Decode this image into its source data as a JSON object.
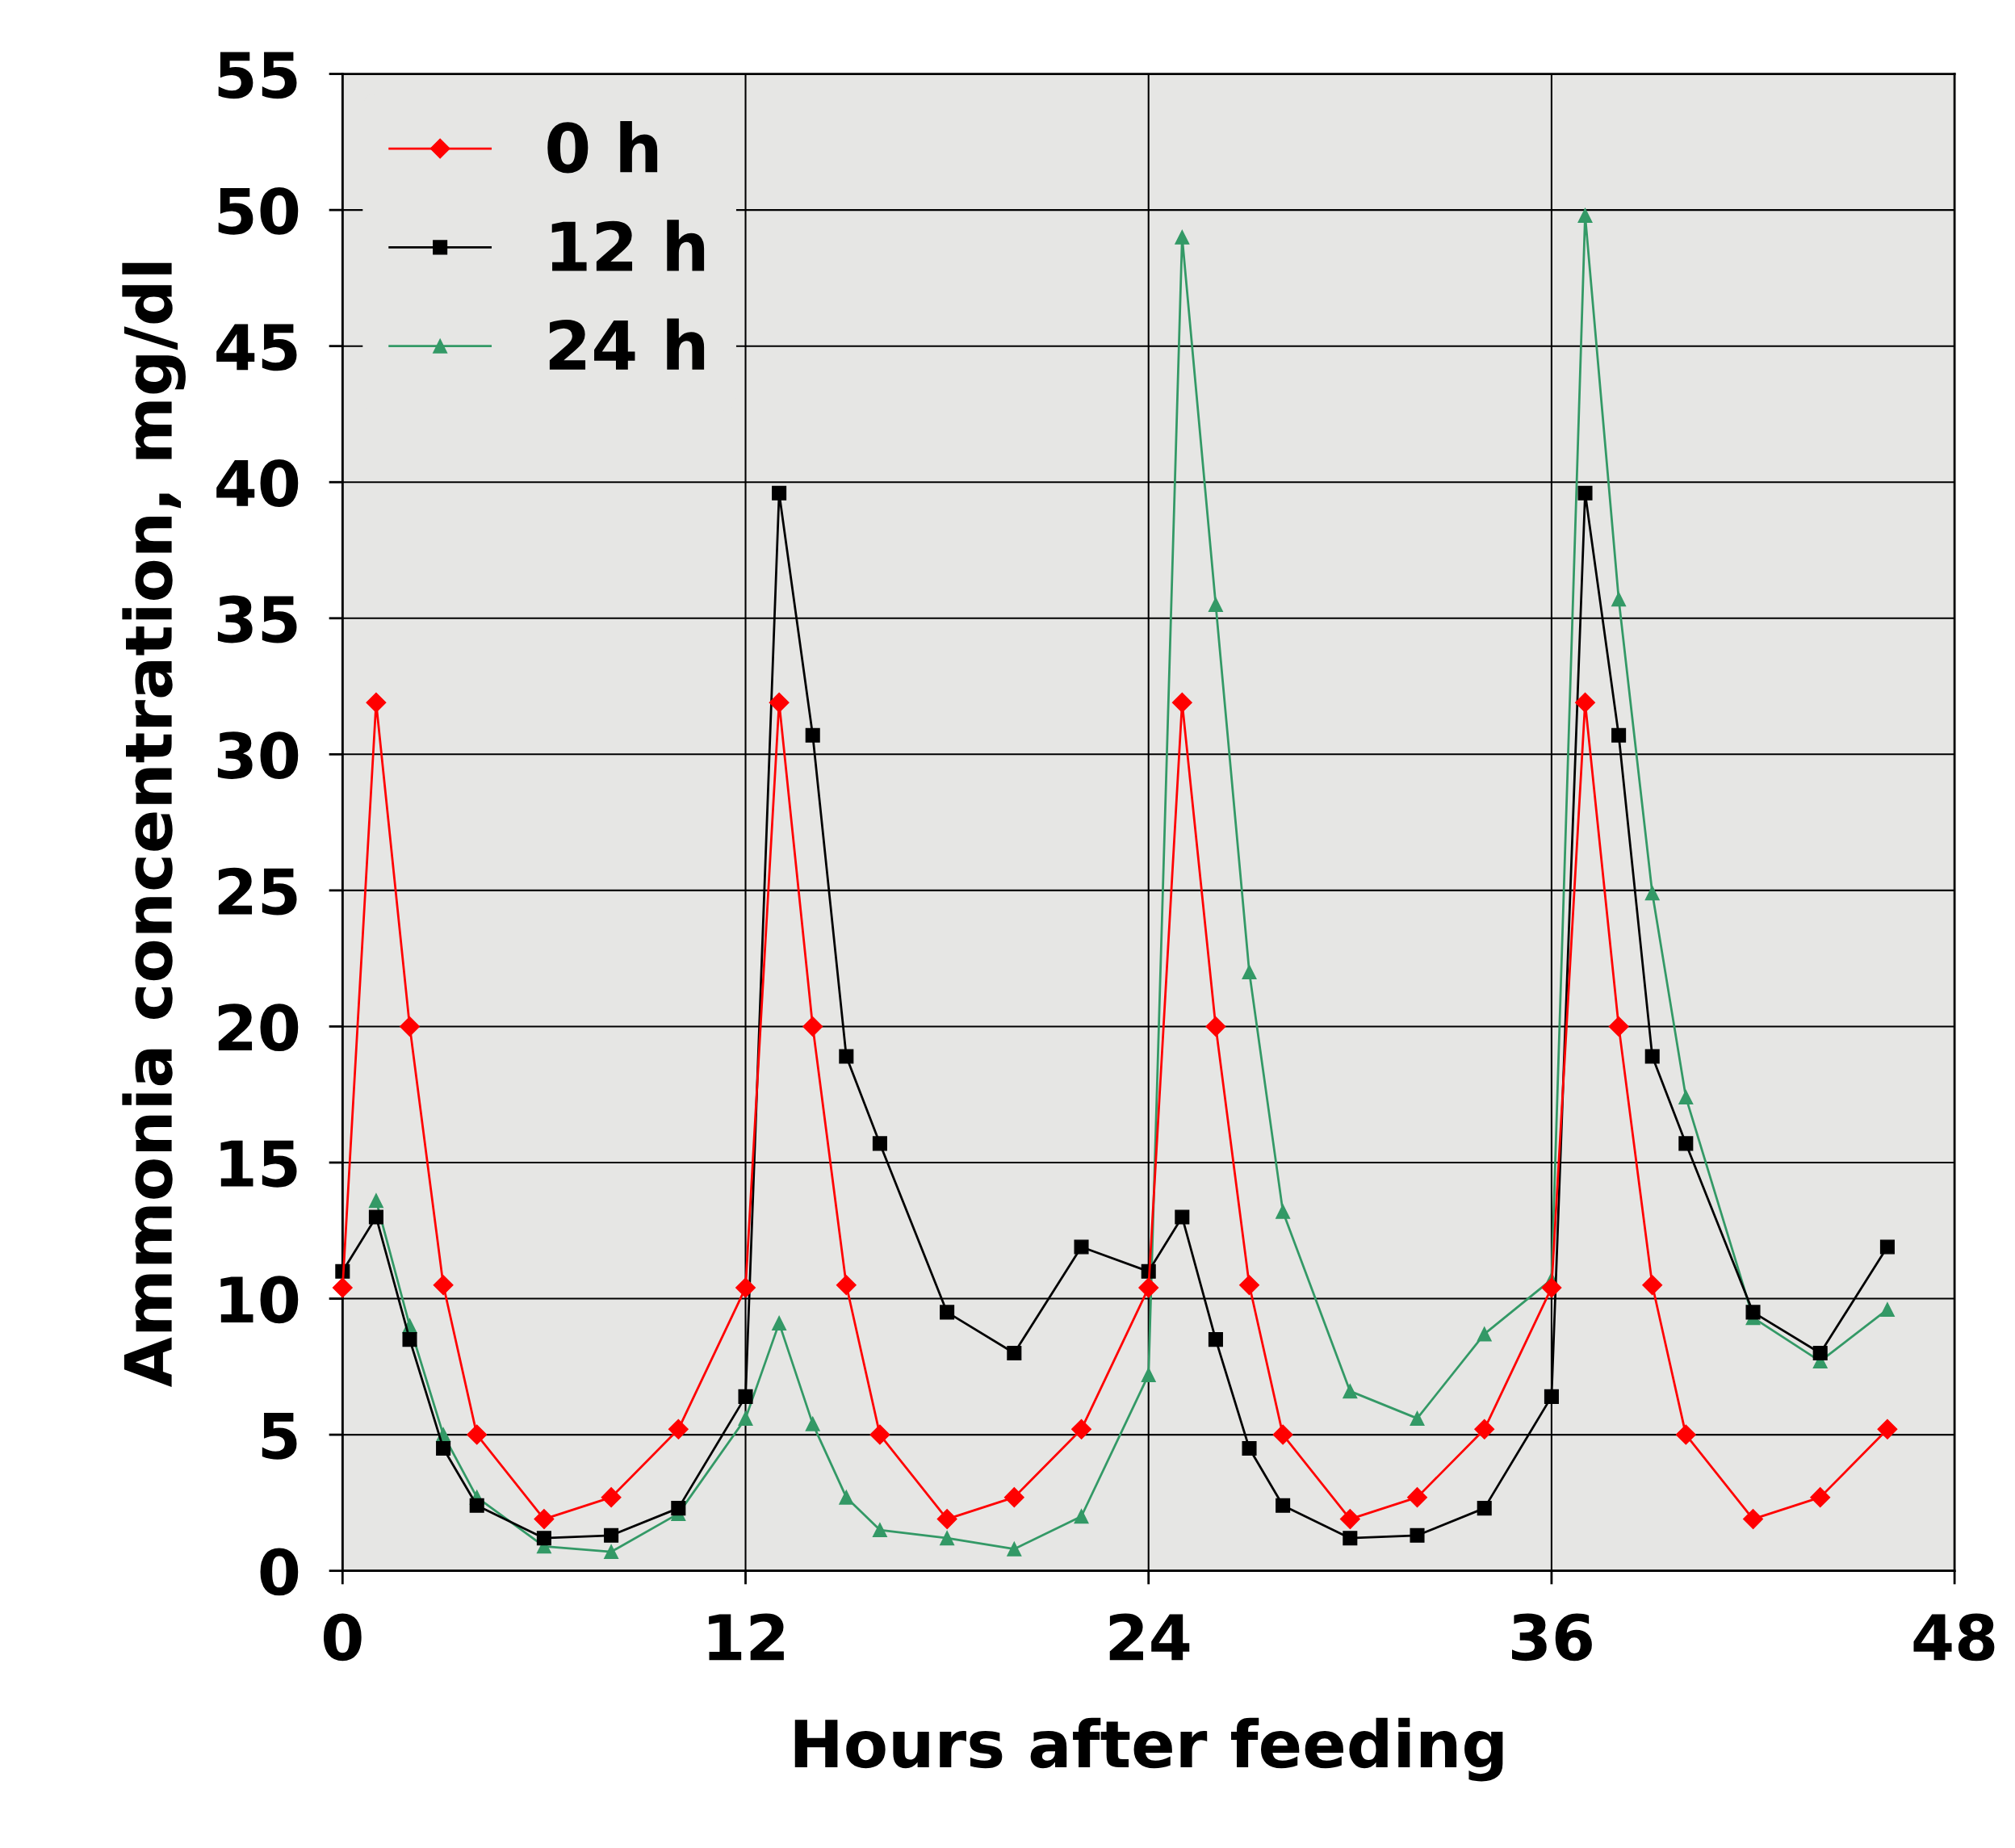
{
  "chart_data": {
    "type": "line",
    "xlabel": "Hours after feeding",
    "ylabel": "Ammonia concentration, mg/dl",
    "x": [
      0,
      1,
      2,
      3,
      4,
      6,
      8,
      10,
      12,
      13,
      14,
      15,
      16,
      18,
      20,
      22,
      24,
      25,
      26,
      27,
      28,
      30,
      32,
      34,
      36,
      37,
      38,
      39,
      40,
      42,
      44,
      46
    ],
    "series": [
      {
        "name": "0 h",
        "color": "#ff0000",
        "marker": "diamond",
        "values": [
          10.4,
          31.9,
          20,
          10.5,
          5,
          1.9,
          2.7,
          5.2,
          10.4,
          31.9,
          20,
          10.5,
          5,
          1.9,
          2.7,
          5.2,
          10.4,
          31.9,
          20,
          10.5,
          5,
          1.9,
          2.7,
          5.2,
          10.4,
          31.9,
          20,
          10.5,
          5,
          1.9,
          2.7,
          5.2
        ]
      },
      {
        "name": "12 h",
        "color": "#000000",
        "marker": "square",
        "values": [
          11,
          13,
          8.5,
          4.5,
          2.4,
          1.2,
          1.3,
          2.3,
          6.4,
          39.6,
          30.7,
          18.9,
          15.7,
          9.5,
          8,
          11.9,
          11,
          13,
          8.5,
          4.5,
          2.4,
          1.2,
          1.3,
          2.3,
          6.4,
          39.6,
          30.7,
          18.9,
          15.7,
          9.5,
          8,
          11.9
        ]
      },
      {
        "name": "24 h",
        "color": "#339966",
        "marker": "triangle",
        "values": [
          null,
          13.6,
          9,
          5,
          2.7,
          0.9,
          0.7,
          2.1,
          5.6,
          9.1,
          5.4,
          2.7,
          1.5,
          1.2,
          0.8,
          2,
          7.2,
          49,
          35.5,
          22,
          13.2,
          6.6,
          5.6,
          8.7,
          10.7,
          49.8,
          35.7,
          24.9,
          17.4,
          9.3,
          7.7,
          9.6
        ]
      }
    ],
    "xlim": [
      0,
      48
    ],
    "xticks": [
      0,
      12,
      24,
      36,
      48
    ],
    "ylim": [
      0,
      55
    ],
    "yticks": [
      0,
      5,
      10,
      15,
      20,
      25,
      30,
      35,
      40,
      45,
      50,
      55
    ],
    "grid": true,
    "legend": "top left",
    "line_style": "solid"
  }
}
